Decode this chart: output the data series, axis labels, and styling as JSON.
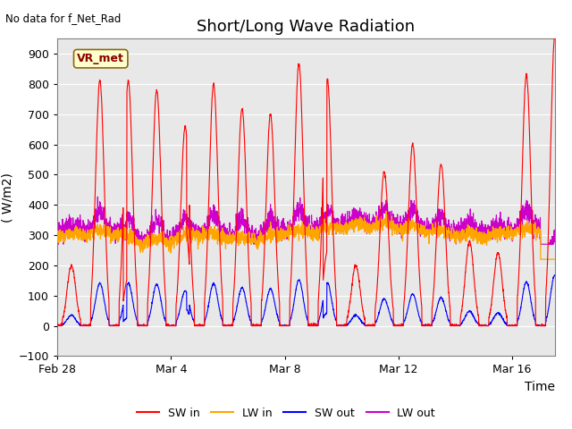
{
  "title": "Short/Long Wave Radiation",
  "top_left_text": "No data for f_Net_Rad",
  "xlabel": "Time",
  "ylabel": "( W/m2)",
  "ylim": [
    -100,
    950
  ],
  "yticks": [
    -100,
    0,
    100,
    200,
    300,
    400,
    500,
    600,
    700,
    800,
    900
  ],
  "xtick_labels": [
    "Feb 28",
    "Mar 4",
    "Mar 8",
    "Mar 12",
    "Mar 16"
  ],
  "xtick_positions": [
    0,
    4,
    8,
    12,
    16
  ],
  "xlim": [
    0,
    17.5
  ],
  "colors": {
    "SW_in": "#FF0000",
    "LW_in": "#FFA500",
    "SW_out": "#0000FF",
    "LW_out": "#CC00CC"
  },
  "bg_color": "#E8E8E8",
  "legend_labels": [
    "SW in",
    "LW in",
    "SW out",
    "LW out"
  ],
  "station_label": "VR_met",
  "title_fontsize": 13,
  "label_fontsize": 10,
  "tick_fontsize": 9
}
